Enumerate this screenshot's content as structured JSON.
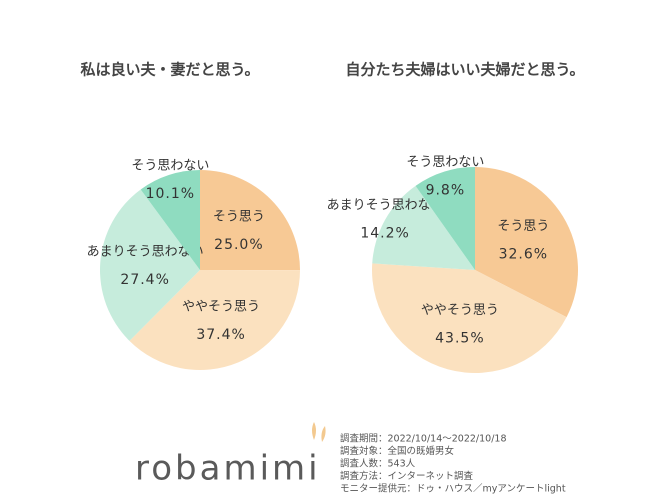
{
  "chart_data": [
    {
      "type": "pie",
      "title": "私は良い夫・妻だと思う。",
      "categories": [
        "そう思う",
        "ややそう思う",
        "あまりそう思わない",
        "そう思わない"
      ],
      "values": [
        25.0,
        37.4,
        27.4,
        10.1
      ],
      "value_labels": [
        "25.0%",
        "37.4%",
        "27.4%",
        "10.1%"
      ],
      "colors": [
        "#f7c995",
        "#fbe1bf",
        "#c6ecdc",
        "#8fdcc0"
      ]
    },
    {
      "type": "pie",
      "title": "自分たち夫婦はいい夫婦だと思う。",
      "categories": [
        "そう思う",
        "ややそう思う",
        "あまりそう思わない",
        "そう思わない"
      ],
      "values": [
        32.6,
        43.5,
        14.2,
        9.8
      ],
      "value_labels": [
        "32.6%",
        "43.5%",
        "14.2%",
        "9.8%"
      ],
      "colors": [
        "#f7c995",
        "#fbe1bf",
        "#c6ecdc",
        "#8fdcc0"
      ]
    }
  ],
  "footer": {
    "logo": "robamimi",
    "lines": [
      "調査期間：2022/10/14〜2022/10/18",
      "調査対象：全国の既婚男女",
      "調査人数：543人",
      "調査方法：インターネット調査",
      "モニター提供元：ドゥ・ハウス／myアンケートlight"
    ]
  }
}
